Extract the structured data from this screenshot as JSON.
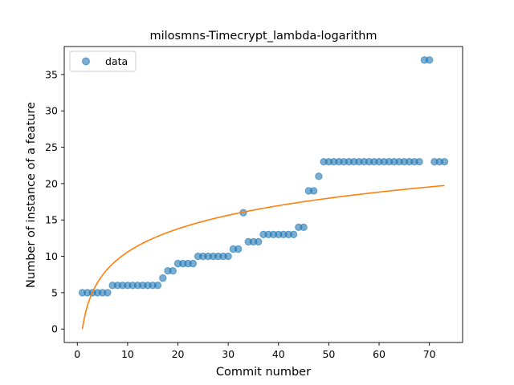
{
  "chart_data": {
    "type": "scatter",
    "title": "milosmns-Timecrypt_lambda-logarithm",
    "xlabel": "Commit number",
    "ylabel": "Number of instance of a feature",
    "xlim": [
      -2.6,
      76.6
    ],
    "ylim": [
      -1.85,
      38.85
    ],
    "xticks": [
      0,
      10,
      20,
      30,
      40,
      50,
      60,
      70
    ],
    "yticks": [
      0,
      5,
      10,
      15,
      20,
      25,
      30,
      35
    ],
    "legend": {
      "position": "top-left",
      "entries": [
        "data"
      ]
    },
    "grid": false,
    "colors": {
      "data": "#1f77b4",
      "fit": "#ff7f0e"
    },
    "series": [
      {
        "name": "data",
        "kind": "scatter",
        "x": [
          1,
          2,
          3,
          4,
          5,
          6,
          7,
          8,
          9,
          10,
          11,
          12,
          13,
          14,
          15,
          16,
          17,
          18,
          19,
          20,
          21,
          22,
          23,
          24,
          25,
          26,
          27,
          28,
          29,
          30,
          31,
          32,
          33,
          34,
          35,
          36,
          37,
          38,
          39,
          40,
          41,
          42,
          43,
          44,
          45,
          46,
          47,
          48,
          49,
          50,
          51,
          52,
          53,
          54,
          55,
          56,
          57,
          58,
          59,
          60,
          61,
          62,
          63,
          64,
          65,
          66,
          67,
          68,
          69,
          70,
          71,
          72,
          73
        ],
        "y": [
          5,
          5,
          5,
          5,
          5,
          5,
          6,
          6,
          6,
          6,
          6,
          6,
          6,
          6,
          6,
          6,
          7,
          8,
          8,
          9,
          9,
          9,
          9,
          10,
          10,
          10,
          10,
          10,
          10,
          10,
          11,
          11,
          16,
          12,
          12,
          12,
          13,
          13,
          13,
          13,
          13,
          13,
          13,
          14,
          14,
          19,
          19,
          21,
          23,
          23,
          23,
          23,
          23,
          23,
          23,
          23,
          23,
          23,
          23,
          23,
          23,
          23,
          23,
          23,
          23,
          23,
          23,
          23,
          37,
          37,
          23,
          23,
          23
        ]
      },
      {
        "kind": "line",
        "x": [
          1,
          73
        ],
        "fit": {
          "model": "logarithmic",
          "a": 4.6,
          "intercept": 0.0
        }
      }
    ]
  }
}
